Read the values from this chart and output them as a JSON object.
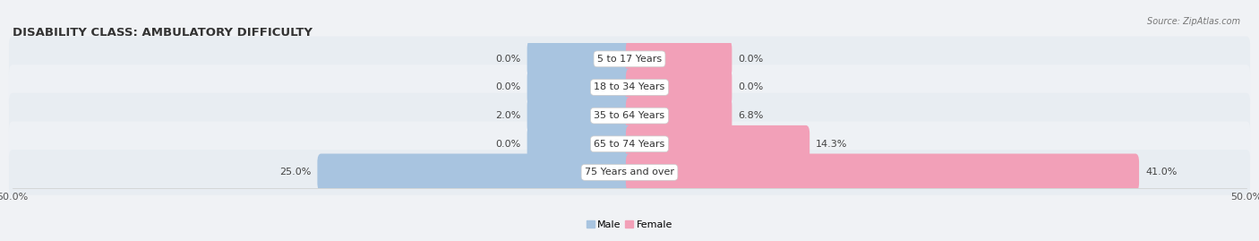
{
  "title": "DISABILITY CLASS: AMBULATORY DIFFICULTY",
  "source": "Source: ZipAtlas.com",
  "categories": [
    "5 to 17 Years",
    "18 to 34 Years",
    "35 to 64 Years",
    "65 to 74 Years",
    "75 Years and over"
  ],
  "male_values": [
    0.0,
    0.0,
    2.0,
    0.0,
    25.0
  ],
  "female_values": [
    0.0,
    0.0,
    6.8,
    14.3,
    41.0
  ],
  "x_min": -50.0,
  "x_max": 50.0,
  "male_color": "#a8c4e0",
  "female_color": "#f2a0b8",
  "male_label": "Male",
  "female_label": "Female",
  "bar_height": 0.72,
  "bg_colors": [
    "#e8edf2",
    "#eef1f5"
  ],
  "title_fontsize": 9.5,
  "label_fontsize": 8,
  "axis_label_fontsize": 8,
  "category_fontsize": 8,
  "min_bar_display": 8.0
}
